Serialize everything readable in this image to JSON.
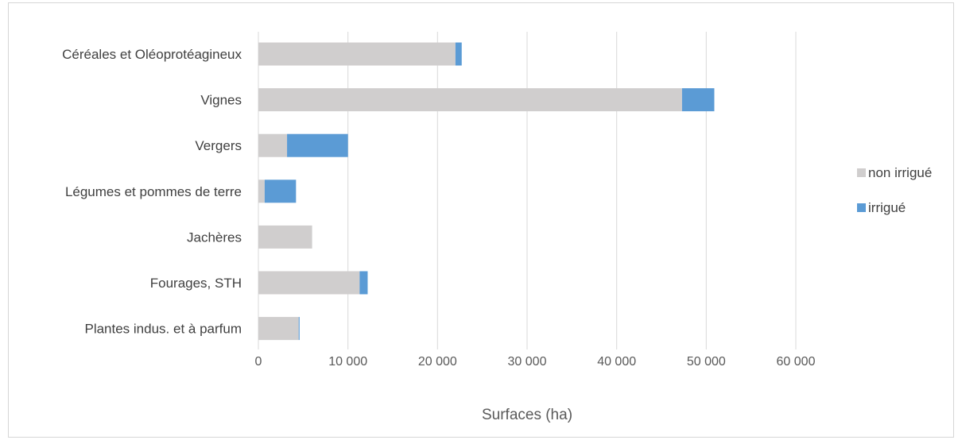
{
  "chart_data": {
    "type": "bar",
    "orientation": "horizontal",
    "stacked": true,
    "title": "",
    "xlabel": "Surfaces (ha)",
    "ylabel": "",
    "xlim": [
      0,
      60000
    ],
    "xticks": [
      0,
      10000,
      20000,
      30000,
      40000,
      50000,
      60000
    ],
    "xtick_labels": [
      "0",
      "10 000",
      "20 000",
      "30 000",
      "40 000",
      "50 000",
      "60 000"
    ],
    "grid": true,
    "legend_position": "right",
    "categories": [
      "Céréales et Oléoprotéagineux",
      "Vignes",
      "Vergers",
      "Légumes et pommes de terre",
      "Jachères",
      "Fourages, STH",
      "Plantes indus. et à parfum"
    ],
    "series": [
      {
        "name": "non irrigué",
        "color": "#d0cece",
        "values": [
          22000,
          47300,
          3200,
          700,
          6000,
          11300,
          4500
        ]
      },
      {
        "name": "irrigué",
        "color": "#5b9bd5",
        "values": [
          700,
          3600,
          6800,
          3500,
          0,
          900,
          100
        ]
      }
    ]
  }
}
